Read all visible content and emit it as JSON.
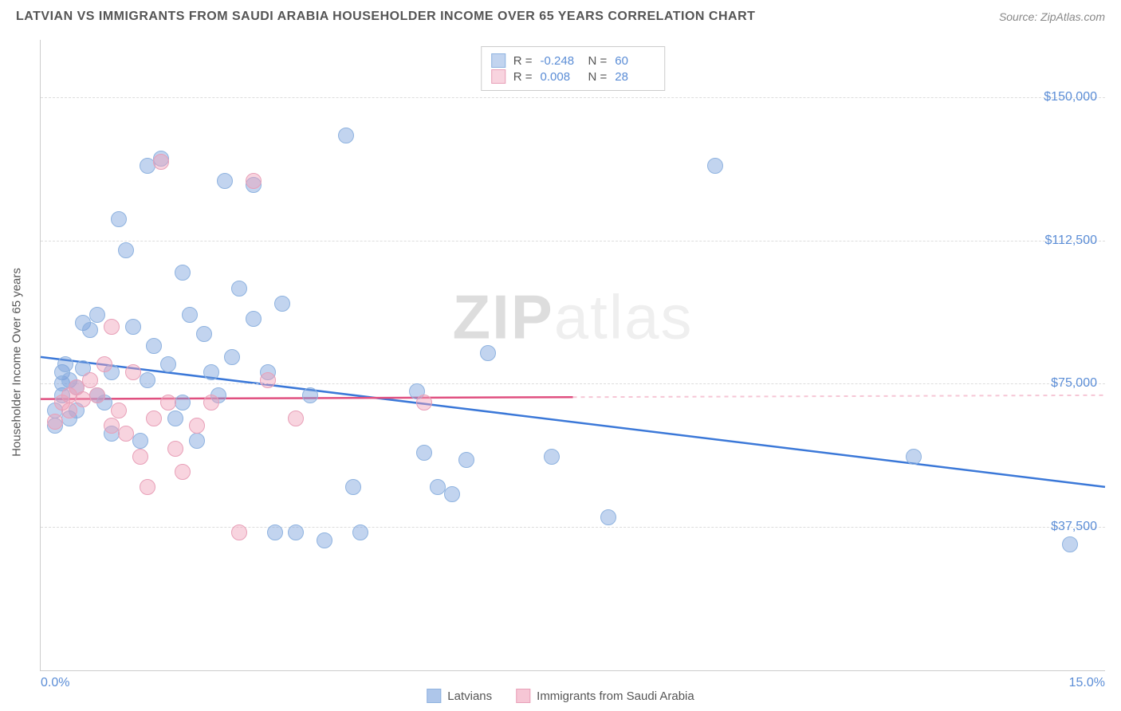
{
  "title": "LATVIAN VS IMMIGRANTS FROM SAUDI ARABIA HOUSEHOLDER INCOME OVER 65 YEARS CORRELATION CHART",
  "source": "Source: ZipAtlas.com",
  "watermark": {
    "bold": "ZIP",
    "light": "atlas"
  },
  "chart": {
    "type": "scatter",
    "ylabel": "Householder Income Over 65 years",
    "xlim": [
      0,
      15
    ],
    "ylim": [
      0,
      165000
    ],
    "xticks": [
      {
        "value": 0,
        "label": "0.0%"
      },
      {
        "value": 15,
        "label": "15.0%"
      }
    ],
    "yticks": [
      {
        "value": 37500,
        "label": "$37,500"
      },
      {
        "value": 75000,
        "label": "$75,000"
      },
      {
        "value": 112500,
        "label": "$112,500"
      },
      {
        "value": 150000,
        "label": "$150,000"
      }
    ],
    "grid_color": "#dddddd",
    "background_color": "#ffffff",
    "marker_radius": 10,
    "marker_border": "#ffffff",
    "series": [
      {
        "name": "Latvians",
        "fill": "rgba(120,160,220,0.45)",
        "stroke": "#8fb3e0",
        "line_color": "#3b78d8",
        "line_dash_color": "rgba(120,160,220,0.5)",
        "R": "-0.248",
        "N": "60",
        "trend": {
          "x1": 0,
          "y1": 82000,
          "x2": 15,
          "y2": 48000,
          "solid_end_x": 15
        },
        "points": [
          [
            0.2,
            64000
          ],
          [
            0.2,
            68000
          ],
          [
            0.3,
            78000
          ],
          [
            0.3,
            72000
          ],
          [
            0.3,
            75000
          ],
          [
            0.35,
            80000
          ],
          [
            0.4,
            76000
          ],
          [
            0.4,
            66000
          ],
          [
            0.5,
            74000
          ],
          [
            0.5,
            68000
          ],
          [
            0.6,
            79000
          ],
          [
            0.6,
            91000
          ],
          [
            0.7,
            89000
          ],
          [
            0.8,
            93000
          ],
          [
            0.8,
            72000
          ],
          [
            0.9,
            70000
          ],
          [
            1.0,
            62000
          ],
          [
            1.0,
            78000
          ],
          [
            1.1,
            118000
          ],
          [
            1.2,
            110000
          ],
          [
            1.3,
            90000
          ],
          [
            1.4,
            60000
          ],
          [
            1.5,
            132000
          ],
          [
            1.5,
            76000
          ],
          [
            1.6,
            85000
          ],
          [
            1.7,
            134000
          ],
          [
            1.8,
            80000
          ],
          [
            1.9,
            66000
          ],
          [
            2.0,
            104000
          ],
          [
            2.0,
            70000
          ],
          [
            2.1,
            93000
          ],
          [
            2.2,
            60000
          ],
          [
            2.3,
            88000
          ],
          [
            2.4,
            78000
          ],
          [
            2.5,
            72000
          ],
          [
            2.6,
            128000
          ],
          [
            2.7,
            82000
          ],
          [
            2.8,
            100000
          ],
          [
            3.0,
            92000
          ],
          [
            3.0,
            127000
          ],
          [
            3.2,
            78000
          ],
          [
            3.3,
            36000
          ],
          [
            3.4,
            96000
          ],
          [
            3.6,
            36000
          ],
          [
            3.8,
            72000
          ],
          [
            4.0,
            34000
          ],
          [
            4.3,
            140000
          ],
          [
            4.4,
            48000
          ],
          [
            4.5,
            36000
          ],
          [
            5.3,
            73000
          ],
          [
            5.4,
            57000
          ],
          [
            5.6,
            48000
          ],
          [
            5.8,
            46000
          ],
          [
            6.0,
            55000
          ],
          [
            6.3,
            83000
          ],
          [
            7.2,
            56000
          ],
          [
            8.0,
            40000
          ],
          [
            9.5,
            132000
          ],
          [
            12.3,
            56000
          ],
          [
            14.5,
            33000
          ]
        ]
      },
      {
        "name": "Immigrants from Saudi Arabia",
        "fill": "rgba(240,160,185,0.45)",
        "stroke": "#e8a0b8",
        "line_color": "#e05080",
        "line_dash_color": "rgba(240,160,185,0.6)",
        "R": "0.008",
        "N": "28",
        "trend": {
          "x1": 0,
          "y1": 71000,
          "x2": 15,
          "y2": 72000,
          "solid_end_x": 7.5
        },
        "points": [
          [
            0.2,
            65000
          ],
          [
            0.3,
            70000
          ],
          [
            0.4,
            72000
          ],
          [
            0.4,
            68000
          ],
          [
            0.5,
            74000
          ],
          [
            0.6,
            71000
          ],
          [
            0.7,
            76000
          ],
          [
            0.8,
            72000
          ],
          [
            0.9,
            80000
          ],
          [
            1.0,
            90000
          ],
          [
            1.0,
            64000
          ],
          [
            1.1,
            68000
          ],
          [
            1.2,
            62000
          ],
          [
            1.3,
            78000
          ],
          [
            1.4,
            56000
          ],
          [
            1.5,
            48000
          ],
          [
            1.6,
            66000
          ],
          [
            1.7,
            133000
          ],
          [
            1.8,
            70000
          ],
          [
            1.9,
            58000
          ],
          [
            2.0,
            52000
          ],
          [
            2.2,
            64000
          ],
          [
            2.4,
            70000
          ],
          [
            2.8,
            36000
          ],
          [
            3.0,
            128000
          ],
          [
            3.2,
            76000
          ],
          [
            3.6,
            66000
          ],
          [
            5.4,
            70000
          ]
        ]
      }
    ],
    "bottom_legend": [
      {
        "label": "Latvians",
        "fill": "rgba(120,160,220,0.6)",
        "stroke": "#8fb3e0"
      },
      {
        "label": "Immigrants from Saudi Arabia",
        "fill": "rgba(240,160,185,0.6)",
        "stroke": "#e8a0b8"
      }
    ]
  }
}
